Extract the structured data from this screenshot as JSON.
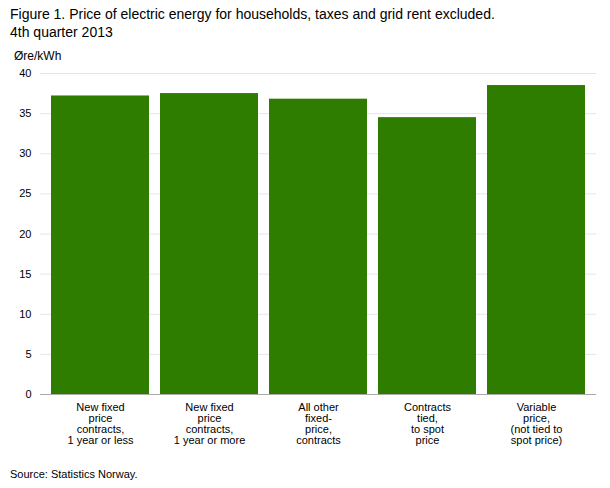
{
  "chart_data": {
    "type": "bar",
    "title": "Figure 1. Price of electric energy for households, taxes and grid rent excluded.\n4th quarter 2013",
    "y_label": "Øre/kWh",
    "source": "Source: Statistics Norway.",
    "categories": [
      "New fixed\nprice\ncontracts,\n1 year or less",
      "New fixed\nprice\ncontracts,\n1 year or more",
      "All other\nfixed-\nprice,\ncontracts",
      "Contracts\ntied,\nto spot\nprice",
      "Variable\nprice,\n(not tied to\nspot price)"
    ],
    "values": [
      37.2,
      37.5,
      36.8,
      34.5,
      38.5
    ],
    "color": "#2e7d00",
    "ylim": [
      0,
      40
    ],
    "yticks": [
      0,
      5,
      10,
      15,
      20,
      25,
      30,
      35,
      40
    ],
    "grid": true
  }
}
